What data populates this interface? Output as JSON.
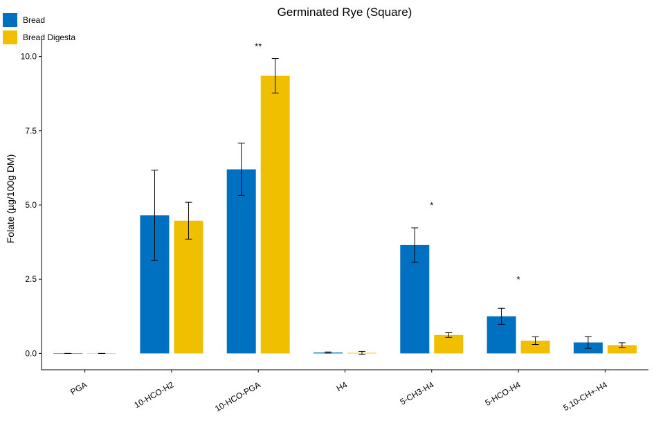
{
  "chart_data": {
    "type": "bar",
    "title": "Germinated Rye (Square)",
    "xlabel": "",
    "ylabel": "Folate (µg/100g DM)",
    "ylim": [
      -0.55,
      10.55
    ],
    "yticks": [
      0.0,
      2.5,
      5.0,
      7.5,
      10.0
    ],
    "ytick_labels": [
      "0.0",
      "2.5",
      "5.0",
      "7.5",
      "10.0"
    ],
    "categories": [
      "PGA",
      "10-HCO-H2",
      "10-HCO-PGA",
      "H4",
      "5-CH3-H4",
      "5-HCO-H4",
      "5,10-CH+-H4"
    ],
    "grid": false,
    "legend_position": "top-left",
    "series": [
      {
        "name": "Bread",
        "color": "#0070C0",
        "values": [
          0.0,
          4.65,
          6.2,
          0.03,
          3.65,
          1.25,
          0.37
        ],
        "errors": [
          0.0,
          1.52,
          0.88,
          0.02,
          0.58,
          0.27,
          0.2
        ]
      },
      {
        "name": "Bread Digesta",
        "color": "#F0C000",
        "values": [
          0.0,
          4.47,
          9.35,
          0.02,
          0.62,
          0.43,
          0.28
        ],
        "errors": [
          0.0,
          0.62,
          0.58,
          0.05,
          0.08,
          0.13,
          0.08
        ]
      }
    ],
    "annotations": [
      {
        "category": "10-HCO-PGA",
        "text": "**",
        "y": 10.35
      },
      {
        "category": "5-CH3-H4",
        "text": "*",
        "y": 5.0
      },
      {
        "category": "5-HCO-H4",
        "text": "*",
        "y": 2.5
      }
    ]
  }
}
